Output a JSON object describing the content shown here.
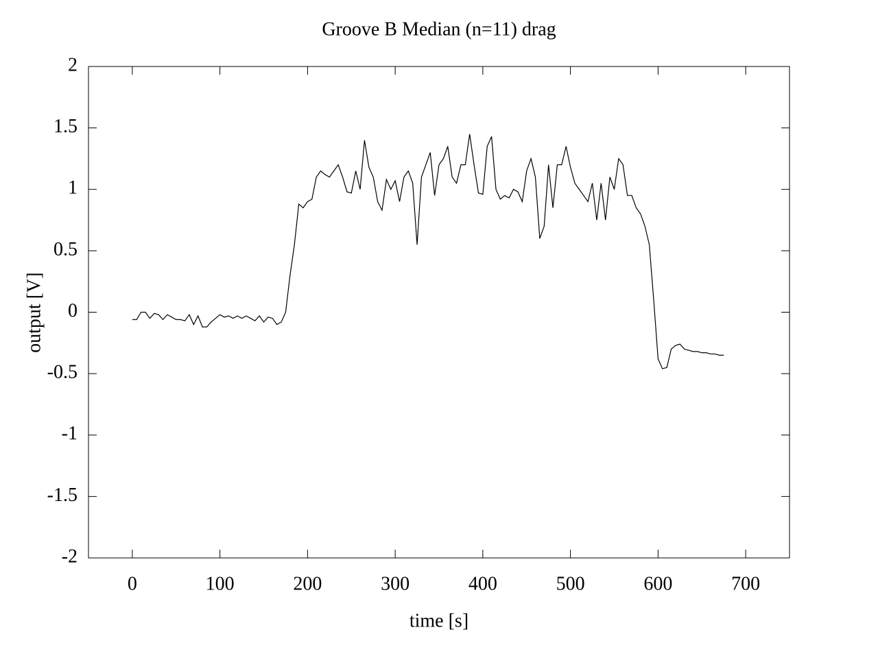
{
  "chart_data": {
    "type": "line",
    "title": "Groove B  Median (n=11) drag",
    "xlabel": "time [s]",
    "ylabel": "output [V]",
    "xlim": [
      -50,
      750
    ],
    "ylim": [
      -2,
      2
    ],
    "xticks": [
      0,
      100,
      200,
      300,
      400,
      500,
      600,
      700
    ],
    "yticks": [
      -2,
      -1.5,
      -1,
      -0.5,
      0,
      0.5,
      1,
      1.5,
      2
    ],
    "series": [
      {
        "color": "#000000",
        "x": [
          0,
          5,
          10,
          15,
          20,
          25,
          30,
          35,
          40,
          45,
          50,
          55,
          60,
          65,
          70,
          75,
          80,
          85,
          90,
          95,
          100,
          105,
          110,
          115,
          120,
          125,
          130,
          135,
          140,
          145,
          150,
          155,
          160,
          165,
          170,
          175,
          180,
          185,
          190,
          195,
          200,
          205,
          210,
          215,
          220,
          225,
          230,
          235,
          240,
          245,
          250,
          255,
          260,
          265,
          270,
          275,
          280,
          285,
          290,
          295,
          300,
          305,
          310,
          315,
          320,
          325,
          330,
          335,
          340,
          345,
          350,
          355,
          360,
          365,
          370,
          375,
          380,
          385,
          390,
          395,
          400,
          405,
          410,
          415,
          420,
          425,
          430,
          435,
          440,
          445,
          450,
          455,
          460,
          465,
          470,
          475,
          480,
          485,
          490,
          495,
          500,
          505,
          510,
          515,
          520,
          525,
          530,
          535,
          540,
          545,
          550,
          555,
          560,
          565,
          570,
          575,
          580,
          585,
          590,
          595,
          600,
          605,
          610,
          615,
          620,
          625,
          630,
          635,
          640,
          645,
          650,
          655,
          660,
          665,
          670,
          675
        ],
        "values": [
          -0.06,
          -0.06,
          0.0,
          0.0,
          -0.05,
          -0.01,
          -0.02,
          -0.06,
          -0.02,
          -0.04,
          -0.06,
          -0.06,
          -0.07,
          -0.02,
          -0.1,
          -0.03,
          -0.12,
          -0.12,
          -0.08,
          -0.05,
          -0.02,
          -0.04,
          -0.03,
          -0.05,
          -0.03,
          -0.05,
          -0.03,
          -0.05,
          -0.07,
          -0.03,
          -0.08,
          -0.04,
          -0.05,
          -0.1,
          -0.08,
          0.0,
          0.3,
          0.55,
          0.88,
          0.85,
          0.9,
          0.92,
          1.1,
          1.15,
          1.12,
          1.1,
          1.15,
          1.2,
          1.1,
          0.98,
          0.97,
          1.15,
          1.0,
          1.4,
          1.18,
          1.1,
          0.9,
          0.83,
          1.08,
          1.0,
          1.07,
          0.9,
          1.1,
          1.15,
          1.05,
          0.55,
          1.1,
          1.2,
          1.3,
          0.95,
          1.2,
          1.25,
          1.35,
          1.1,
          1.05,
          1.2,
          1.2,
          1.45,
          1.2,
          0.97,
          0.96,
          1.35,
          1.43,
          1.0,
          0.92,
          0.95,
          0.93,
          1.0,
          0.98,
          0.9,
          1.15,
          1.25,
          1.1,
          0.6,
          0.7,
          1.2,
          0.85,
          1.2,
          1.2,
          1.35,
          1.18,
          1.05,
          1.0,
          0.95,
          0.9,
          1.05,
          0.75,
          1.05,
          0.75,
          1.1,
          1.0,
          1.25,
          1.2,
          0.95,
          0.95,
          0.85,
          0.8,
          0.7,
          0.55,
          0.1,
          -0.38,
          -0.46,
          -0.45,
          -0.3,
          -0.27,
          -0.26,
          -0.3,
          -0.31,
          -0.32,
          -0.32,
          -0.33,
          -0.33,
          -0.34,
          -0.34,
          -0.35,
          -0.35
        ]
      }
    ]
  }
}
